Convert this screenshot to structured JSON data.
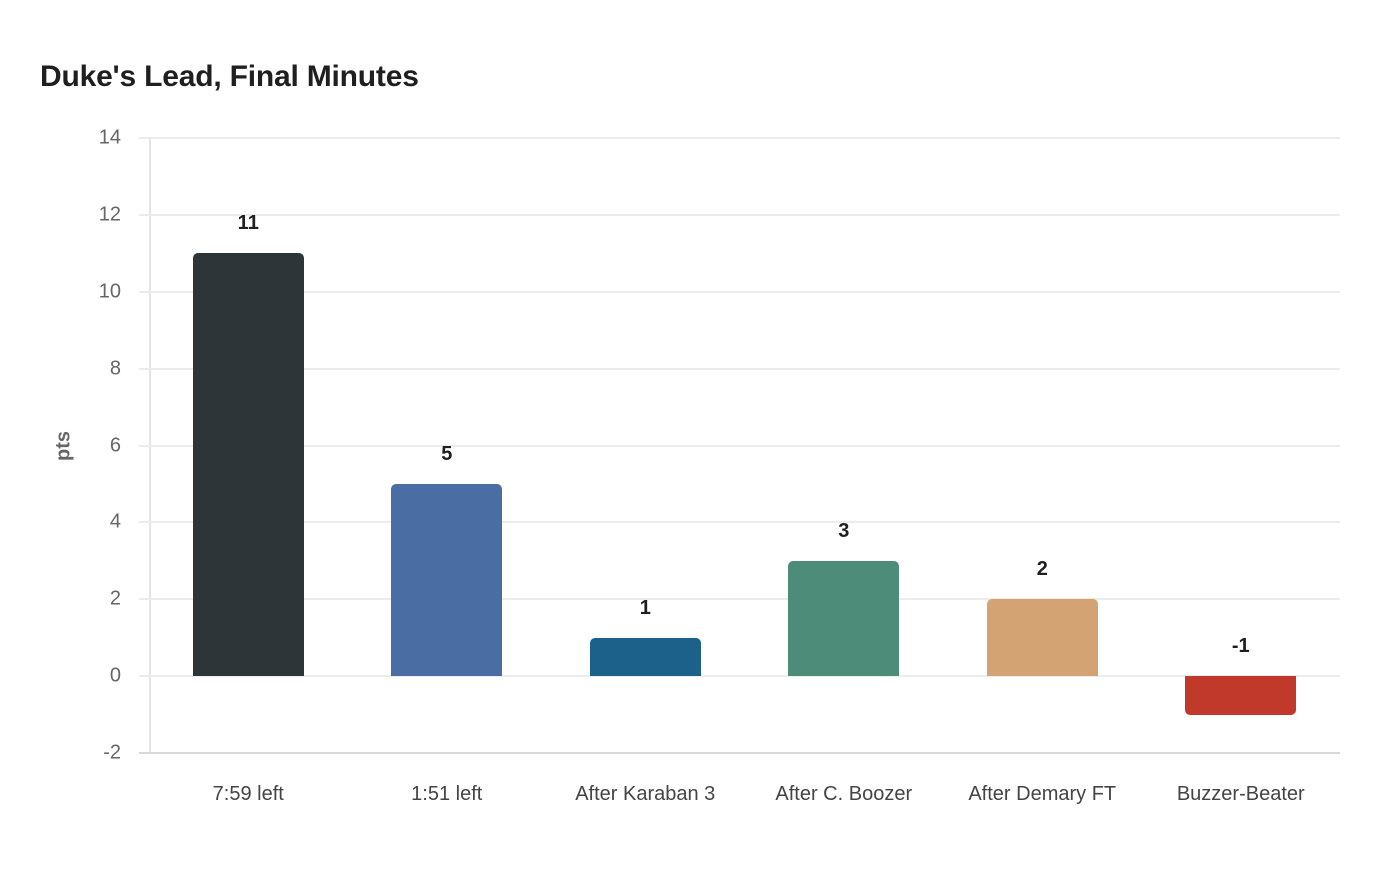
{
  "chart_data": {
    "type": "bar",
    "title": "Duke's Lead, Final Minutes",
    "xlabel": "",
    "ylabel": "pts",
    "ylim": [
      -2,
      14
    ],
    "yticks": [
      14,
      12,
      10,
      8,
      6,
      4,
      2,
      0,
      -2
    ],
    "grid": true,
    "legend": "none",
    "categories": [
      "7:59 left",
      "1:51 left",
      "After Karaban 3",
      "After C. Boozer",
      "After Demary FT",
      "Buzzer-Beater"
    ],
    "values": [
      11,
      5,
      1,
      3,
      2,
      -1
    ],
    "value_labels": [
      "11",
      "5",
      "1",
      "3",
      "2",
      "-1"
    ],
    "colors": [
      "#2e3538",
      "#4a6da3",
      "#1b6189",
      "#4e8c7a",
      "#d4a373",
      "#c0392b"
    ]
  }
}
